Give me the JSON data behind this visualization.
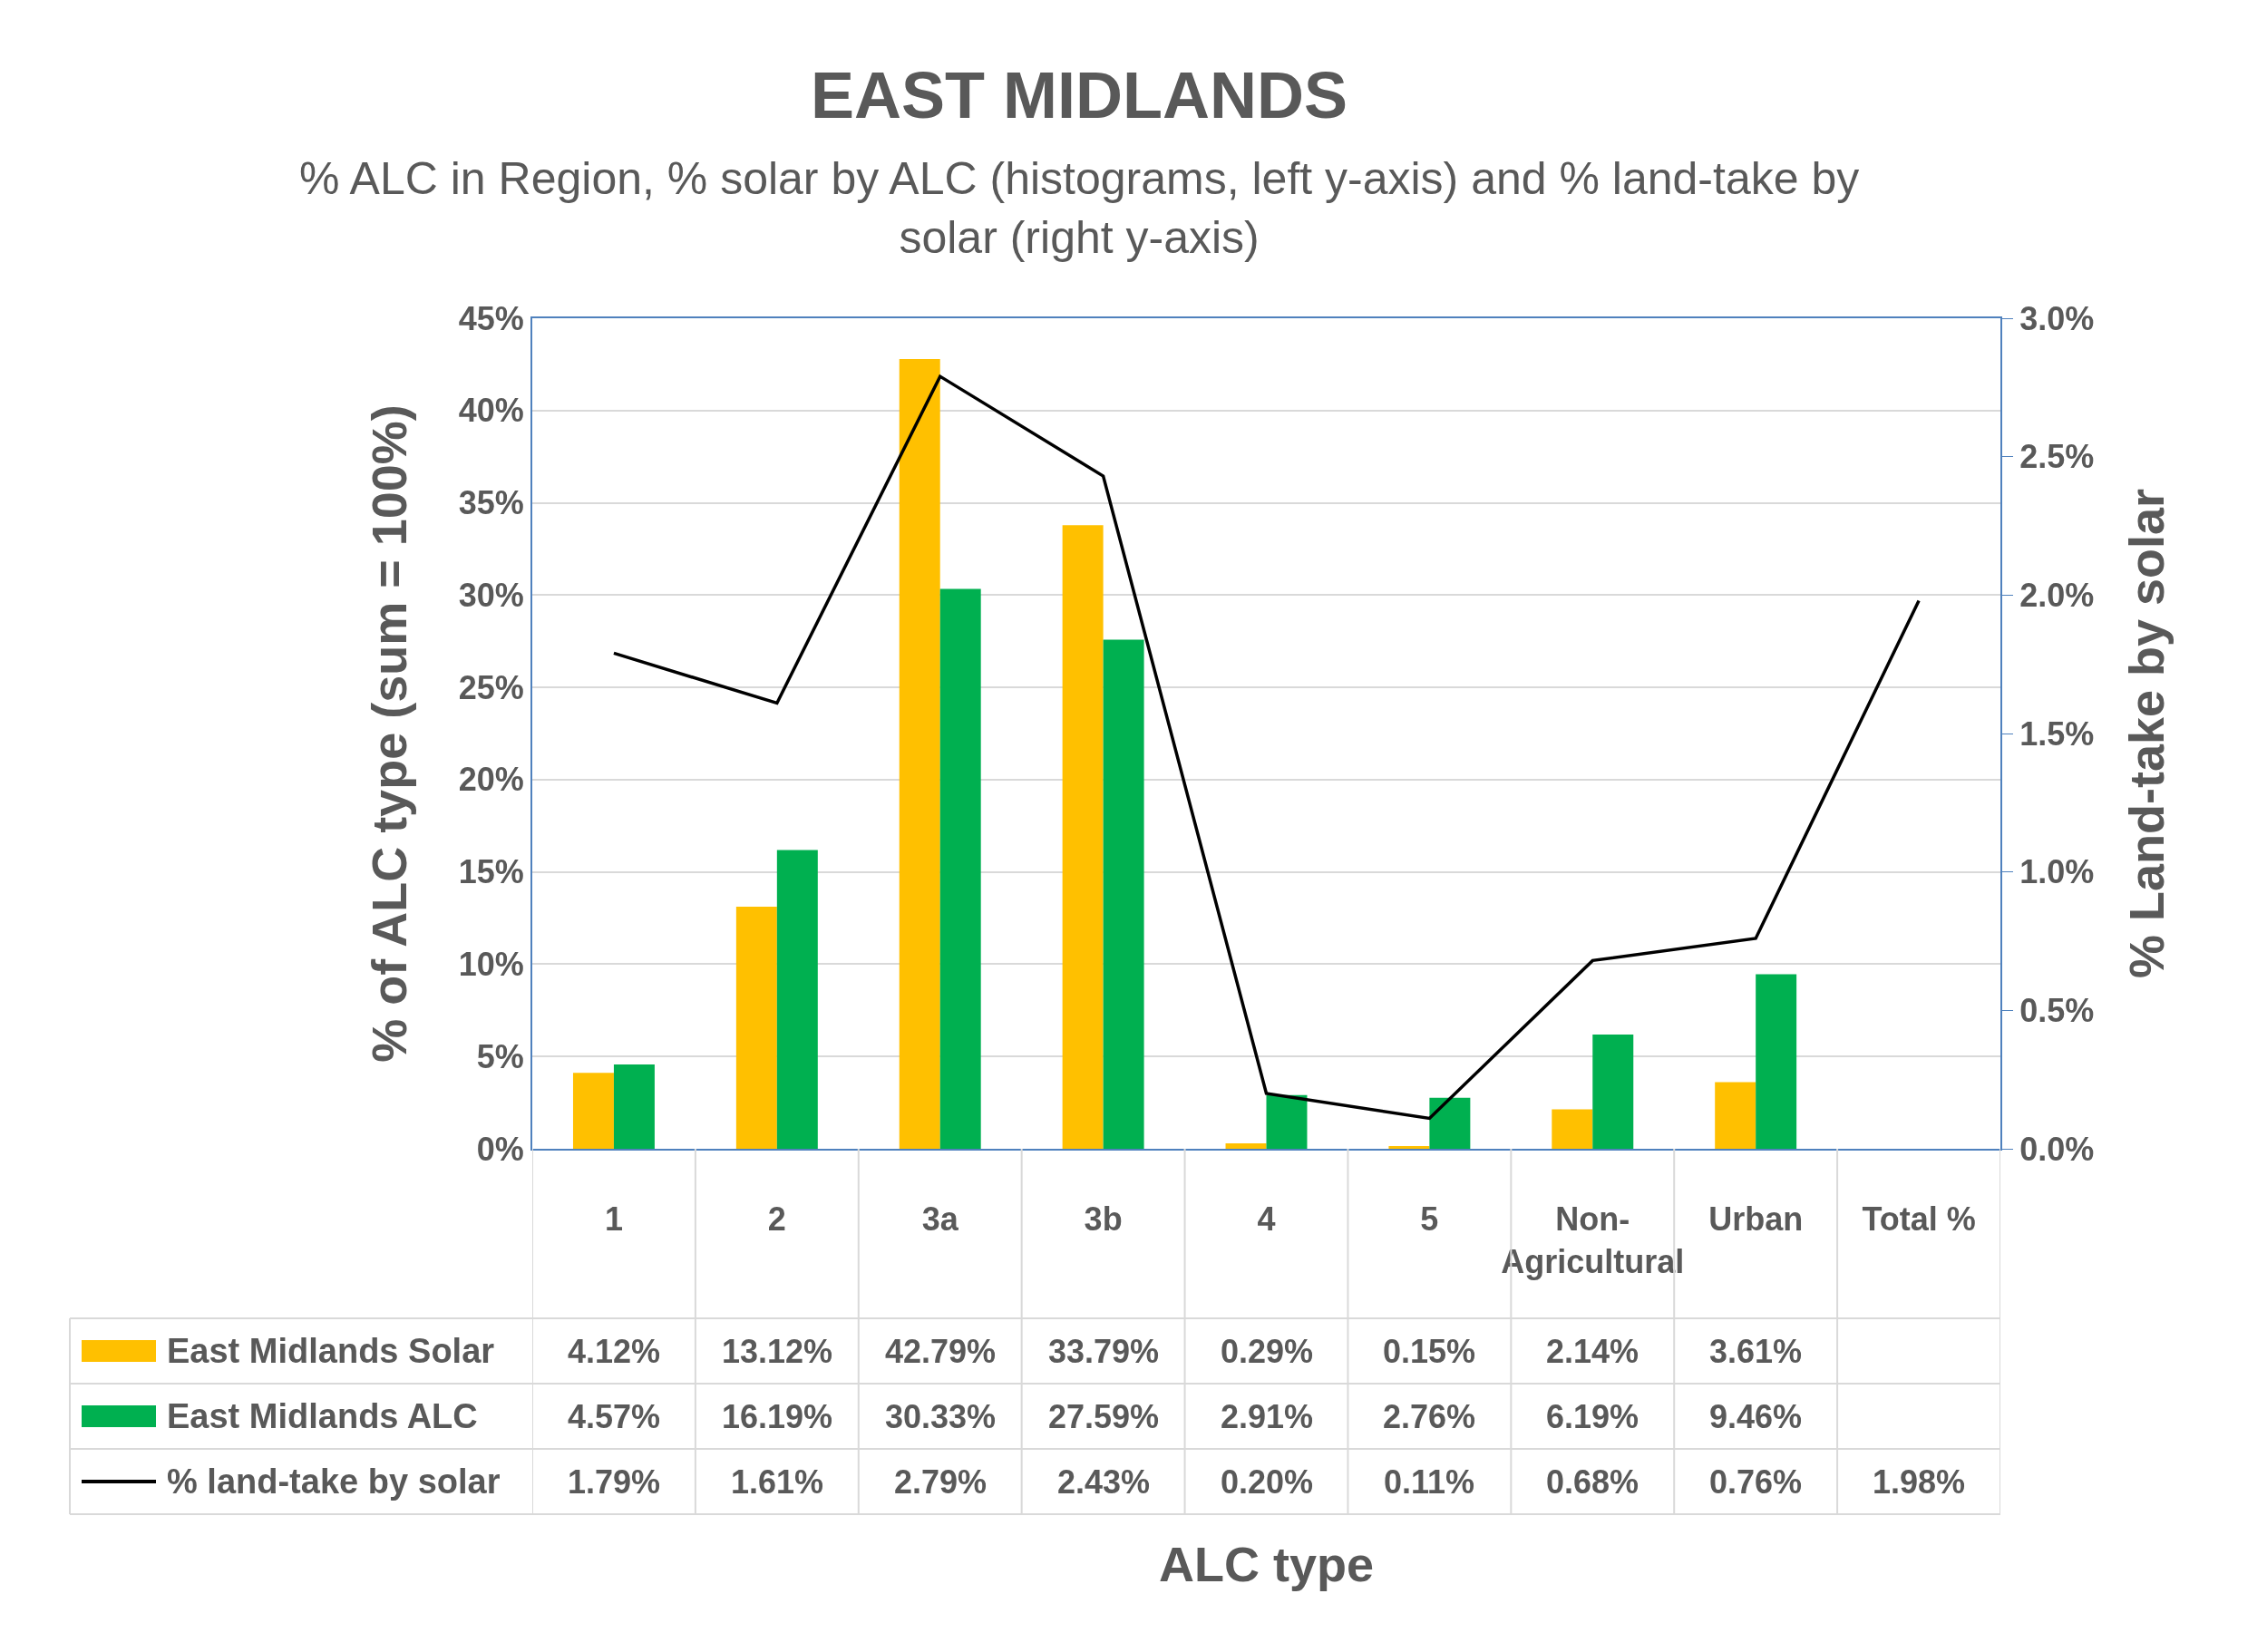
{
  "chart_data": {
    "type": "bar",
    "title": "EAST MIDLANDS",
    "subtitle": "% ALC in Region, % solar by ALC (histograms, left y-axis) and % land-take by solar (right y-axis)",
    "annotations": [
      "ALC type"
    ],
    "ylabel": "% of ALC type (sum = 100%)",
    "y2label": "% Land-take by solar",
    "categories": [
      "1",
      "2",
      "3a",
      "3b",
      "4",
      "5",
      "Non-Agricultural",
      "Urban",
      "Total %"
    ],
    "series": [
      {
        "name": "East Midlands Solar",
        "color": "#ffc000",
        "values": [
          4.12,
          13.12,
          42.79,
          33.79,
          0.29,
          0.15,
          2.14,
          3.61,
          null
        ],
        "value_labels": [
          "4.12%",
          "13.12%",
          "42.79%",
          "33.79%",
          "0.29%",
          "0.15%",
          "2.14%",
          "3.61%",
          null
        ]
      },
      {
        "name": "East Midlands ALC",
        "color": "#00b050",
        "values": [
          4.57,
          16.19,
          30.33,
          27.59,
          2.91,
          2.76,
          6.19,
          9.46,
          null
        ],
        "value_labels": [
          "4.57%",
          "16.19%",
          "30.33%",
          "27.59%",
          "2.91%",
          "2.76%",
          "6.19%",
          "9.46%",
          null
        ]
      },
      {
        "name": "% land-take by solar",
        "type": "line",
        "axis": "y2",
        "color": "#000000",
        "values": [
          1.79,
          1.61,
          2.79,
          2.43,
          0.2,
          0.11,
          0.68,
          0.76,
          1.98
        ],
        "value_labels": [
          "1.79%",
          "1.61%",
          "2.79%",
          "2.43%",
          "0.20%",
          "0.11%",
          "0.68%",
          "0.76%",
          "1.98%"
        ]
      }
    ],
    "ylim": [
      0,
      45
    ],
    "yticks": [
      {
        "value": 0,
        "label": "0%"
      },
      {
        "value": 5,
        "label": "5%"
      },
      {
        "value": 10,
        "label": "10%"
      },
      {
        "value": 15,
        "label": "15%"
      },
      {
        "value": 20,
        "label": "20%"
      },
      {
        "value": 25,
        "label": "25%"
      },
      {
        "value": 30,
        "label": "30%"
      },
      {
        "value": 35,
        "label": "35%"
      },
      {
        "value": 40,
        "label": "40%"
      },
      {
        "value": 45,
        "label": "45%"
      }
    ],
    "y2lim": [
      0,
      3
    ],
    "y2ticks": [
      {
        "value": 0,
        "label": "0.0%"
      },
      {
        "value": 0.5,
        "label": "0.5%"
      },
      {
        "value": 1,
        "label": "1.0%"
      },
      {
        "value": 1.5,
        "label": "1.5%"
      },
      {
        "value": 2,
        "label": "2.0%"
      },
      {
        "value": 2.5,
        "label": "2.5%"
      },
      {
        "value": 3,
        "label": "3.0%"
      }
    ],
    "grid": "y",
    "legend": "bottom",
    "marker": "none",
    "line_style": "solid"
  }
}
